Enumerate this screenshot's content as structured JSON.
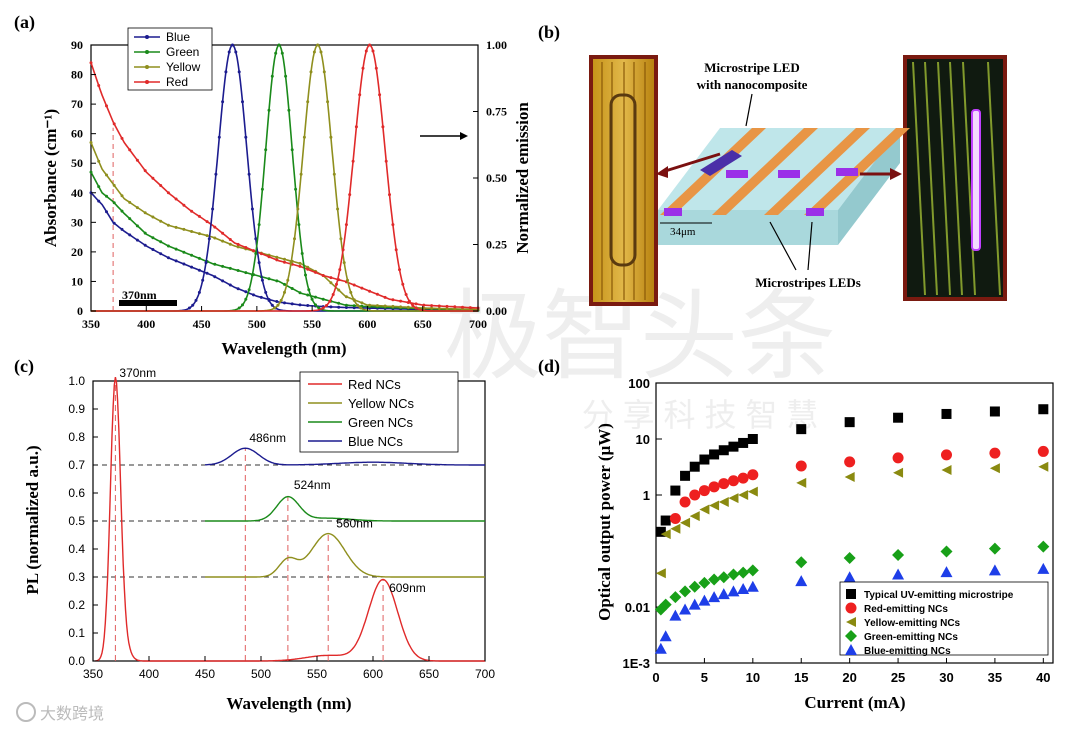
{
  "panels": {
    "a": "(a)",
    "b": "(b)",
    "c": "(c)",
    "d": "(d)"
  },
  "watermark": {
    "big": "极智头条",
    "small": "分 享 科 技 智 慧",
    "logo": "大数跨境"
  },
  "schematic": {
    "title_line1": "Microstripe LED",
    "title_line2": "with nanocomposite",
    "dimension": "34μm",
    "bottom_label": "Microstripes LEDs"
  },
  "colors": {
    "blue": "#1c1c8f",
    "green": "#1a8a1a",
    "yellow": "#8f8f1e",
    "red": "#e02a2a",
    "black": "#000000"
  },
  "chart_data": [
    {
      "id": "a",
      "type": "line",
      "xlabel": "Wavelength (nm)",
      "ylabel": "Absorbance (cm⁻¹)",
      "ylabel_right": "Normalized emission",
      "xlim": [
        350,
        700
      ],
      "ylim": [
        0,
        90
      ],
      "ylim_right": [
        0,
        1
      ],
      "x_ticks": [
        350,
        400,
        450,
        500,
        550,
        600,
        650,
        700
      ],
      "y_ticks": [
        0,
        10,
        20,
        30,
        40,
        50,
        60,
        70,
        80,
        90
      ],
      "y_ticks_right": [
        "0.00",
        "0.25",
        "0.50",
        "0.75",
        "1.00"
      ],
      "annotation": "370nm",
      "marker_x": 370,
      "legend": [
        "Blue",
        "Green",
        "Yellow",
        "Red"
      ],
      "absorbance_series": [
        {
          "name": "Blue",
          "x": [
            350,
            360,
            370,
            380,
            400,
            420,
            440,
            460,
            480,
            500,
            520,
            540,
            560,
            580,
            600,
            650,
            700
          ],
          "y": [
            40,
            36,
            30,
            27,
            22,
            18,
            15,
            12,
            8,
            5,
            3,
            2,
            1.5,
            1.2,
            1,
            0.5,
            0.2
          ]
        },
        {
          "name": "Green",
          "x": [
            350,
            360,
            370,
            380,
            400,
            420,
            440,
            460,
            480,
            500,
            520,
            540,
            560,
            580,
            600,
            650,
            700
          ],
          "y": [
            47,
            40,
            37,
            33,
            26,
            22,
            19,
            16,
            14,
            12,
            10,
            6,
            4,
            2,
            1.5,
            0.8,
            0.3
          ]
        },
        {
          "name": "Yellow",
          "x": [
            350,
            360,
            370,
            380,
            400,
            420,
            440,
            460,
            480,
            500,
            520,
            540,
            560,
            580,
            600,
            650,
            700
          ],
          "y": [
            57,
            48,
            43,
            38,
            33,
            29,
            27,
            25,
            22,
            20,
            18,
            16,
            12,
            5,
            2,
            1,
            0.5
          ]
        },
        {
          "name": "Red",
          "x": [
            350,
            360,
            370,
            380,
            400,
            420,
            440,
            460,
            480,
            500,
            520,
            540,
            560,
            580,
            600,
            620,
            650,
            700
          ],
          "y": [
            84,
            73,
            64,
            57,
            47,
            40,
            34,
            29,
            23,
            20,
            17,
            15,
            12,
            10,
            7,
            4,
            2,
            1
          ]
        }
      ],
      "emission_series": [
        {
          "name": "Blue",
          "peak": 478,
          "width": 13
        },
        {
          "name": "Green",
          "peak": 520,
          "width": 12
        },
        {
          "name": "Yellow",
          "peak": 555,
          "width": 13
        },
        {
          "name": "Red",
          "peak": 602,
          "width": 14
        }
      ]
    },
    {
      "id": "c",
      "type": "line",
      "xlabel": "Wavelength (nm)",
      "ylabel": "PL (normalized a.u.)",
      "xlim": [
        350,
        700
      ],
      "ylim": [
        0,
        1.0
      ],
      "x_ticks": [
        350,
        400,
        450,
        500,
        550,
        600,
        650,
        700
      ],
      "y_ticks": [
        "0.0",
        "0.1",
        "0.2",
        "0.3",
        "0.4",
        "0.5",
        "0.6",
        "0.7",
        "0.8",
        "0.9",
        "1.0"
      ],
      "legend": [
        "Red NCs",
        "Yellow NCs",
        "Green NCs",
        "Blue NCs"
      ],
      "baselines": [
        0.7,
        0.5,
        0.3
      ],
      "peaks": [
        {
          "label": "370nm",
          "x": 370,
          "y": 1.0
        },
        {
          "label": "486nm",
          "x": 486,
          "y": 0.76
        },
        {
          "label": "524nm",
          "x": 524,
          "y": 0.585
        },
        {
          "label": "560nm",
          "x": 560,
          "y": 0.455
        },
        {
          "label": "609nm",
          "x": 609,
          "y": 0.29
        }
      ]
    },
    {
      "id": "d",
      "type": "scatter",
      "xlabel": "Current (mA)",
      "ylabel": "Optical output power (μW)",
      "xlim": [
        0,
        41
      ],
      "ylim_log": [
        0.001,
        100
      ],
      "x_ticks": [
        0,
        5,
        10,
        15,
        20,
        25,
        30,
        35,
        40
      ],
      "y_ticks": [
        "1E-3",
        "0.01",
        "1",
        "10",
        "100"
      ],
      "series": [
        {
          "name": "Typical UV-emitting microstripe",
          "marker": "square",
          "x": [
            0.5,
            1,
            2,
            3,
            4,
            5,
            6,
            7,
            8,
            9,
            10,
            15,
            20,
            25,
            30,
            35,
            40
          ],
          "y": [
            0.22,
            0.35,
            1.2,
            2.2,
            3.2,
            4.3,
            5.3,
            6.3,
            7.3,
            8.5,
            10,
            15,
            20,
            24,
            28,
            31,
            34
          ]
        },
        {
          "name": "Red-emitting NCs",
          "marker": "circle",
          "x": [
            2,
            3,
            4,
            5,
            6,
            7,
            8,
            9,
            10,
            15,
            20,
            25,
            30,
            35,
            40
          ],
          "y": [
            0.38,
            0.75,
            1.0,
            1.2,
            1.4,
            1.6,
            1.8,
            2.0,
            2.3,
            3.3,
            3.9,
            4.6,
            5.2,
            5.6,
            6.0
          ]
        },
        {
          "name": "Yellow-emitting NCs",
          "marker": "triangle-left",
          "x": [
            0.5,
            1,
            2,
            3,
            4,
            5,
            6,
            7,
            8,
            9,
            10,
            15,
            20,
            25,
            30,
            35,
            40
          ],
          "y": [
            0.04,
            0.2,
            0.25,
            0.32,
            0.42,
            0.55,
            0.65,
            0.75,
            0.88,
            1.0,
            1.15,
            1.65,
            2.1,
            2.5,
            2.8,
            3.0,
            3.2
          ]
        },
        {
          "name": "Green-emitting NCs",
          "marker": "diamond",
          "x": [
            0.5,
            1,
            2,
            3,
            4,
            5,
            6,
            7,
            8,
            9,
            10,
            15,
            20,
            25,
            30,
            35,
            40
          ],
          "y": [
            0.009,
            0.011,
            0.015,
            0.019,
            0.023,
            0.027,
            0.031,
            0.034,
            0.038,
            0.041,
            0.045,
            0.063,
            0.075,
            0.085,
            0.098,
            0.11,
            0.12
          ]
        },
        {
          "name": "Blue-emitting NCs",
          "marker": "triangle-up",
          "x": [
            0.5,
            1,
            2,
            3,
            4,
            5,
            6,
            7,
            8,
            9,
            10,
            15,
            20,
            25,
            30,
            35,
            40
          ],
          "y": [
            0.0018,
            0.003,
            0.007,
            0.009,
            0.011,
            0.013,
            0.015,
            0.017,
            0.019,
            0.021,
            0.023,
            0.029,
            0.034,
            0.038,
            0.042,
            0.045,
            0.048
          ]
        }
      ]
    }
  ]
}
